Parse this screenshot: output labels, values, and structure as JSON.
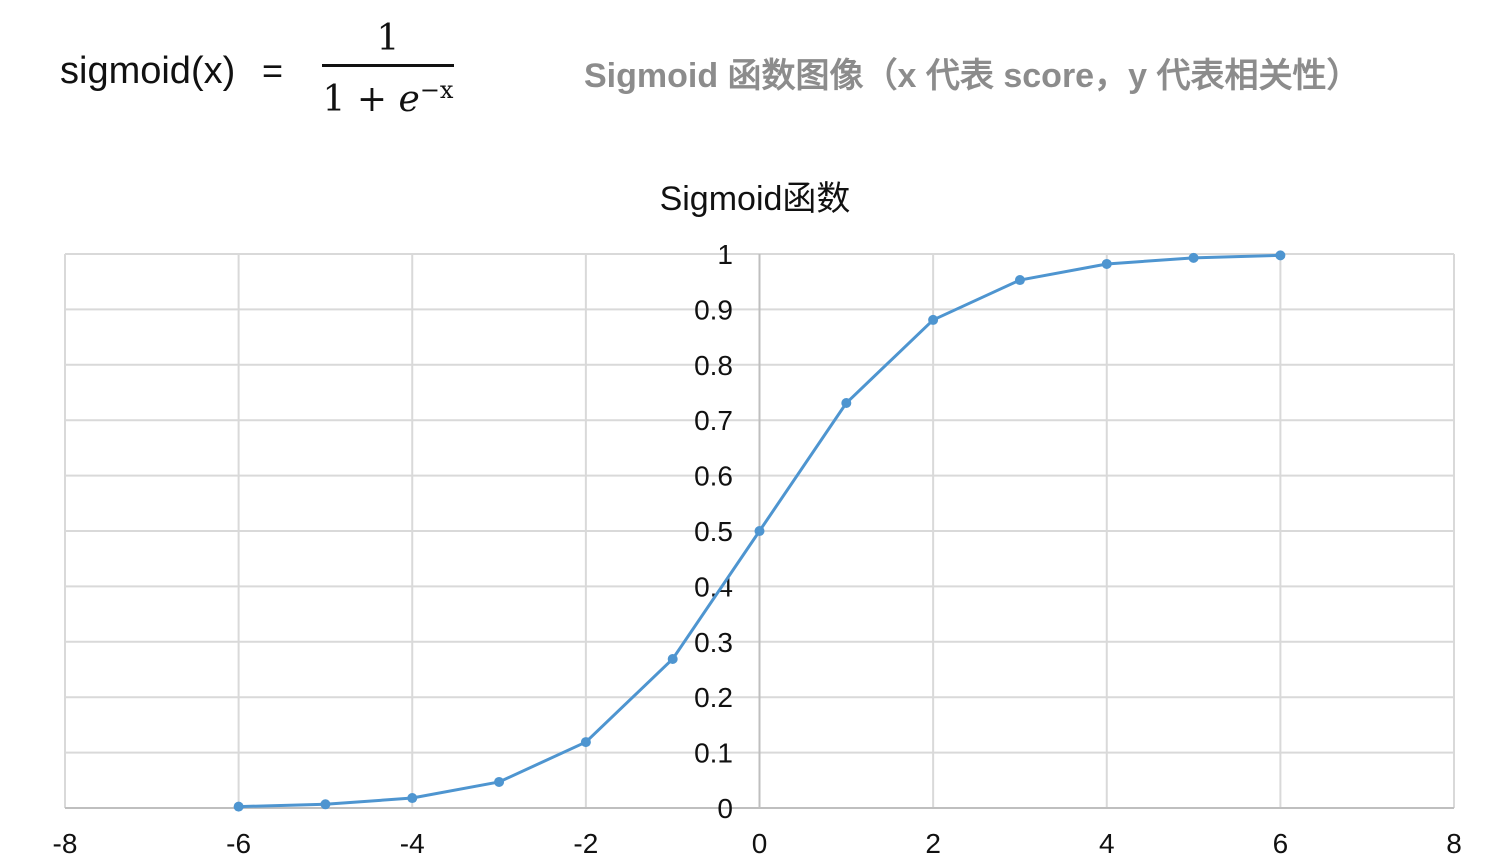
{
  "formula": {
    "lhs": "sigmoid(x)",
    "equals": "=",
    "numerator": "1",
    "denominator_base": "1 + ",
    "denominator_e": "e",
    "denominator_exp": "−x"
  },
  "annotation": "Sigmoid 函数图像（x 代表 score，y 代表相关性）",
  "chart_data": {
    "type": "scatter",
    "title": "Sigmoid函数",
    "xlabel": "",
    "ylabel": "",
    "xlim": [
      -8,
      8
    ],
    "ylim": [
      0,
      1
    ],
    "x_ticks": [
      "-8",
      "-6",
      "-4",
      "-2",
      "0",
      "2",
      "4",
      "6",
      "8"
    ],
    "y_ticks": [
      "0",
      "0.1",
      "0.2",
      "0.3",
      "0.4",
      "0.5",
      "0.6",
      "0.7",
      "0.8",
      "0.9",
      "1"
    ],
    "grid": true,
    "markers": true,
    "line": "straight",
    "color": "#4e95d0",
    "x": [
      -6,
      -5,
      -4,
      -3,
      -2,
      -1,
      0,
      1,
      2,
      3,
      4,
      5,
      6
    ],
    "y": [
      0.0025,
      0.0067,
      0.018,
      0.047,
      0.119,
      0.269,
      0.5,
      0.731,
      0.881,
      0.953,
      0.982,
      0.993,
      0.9975
    ]
  }
}
